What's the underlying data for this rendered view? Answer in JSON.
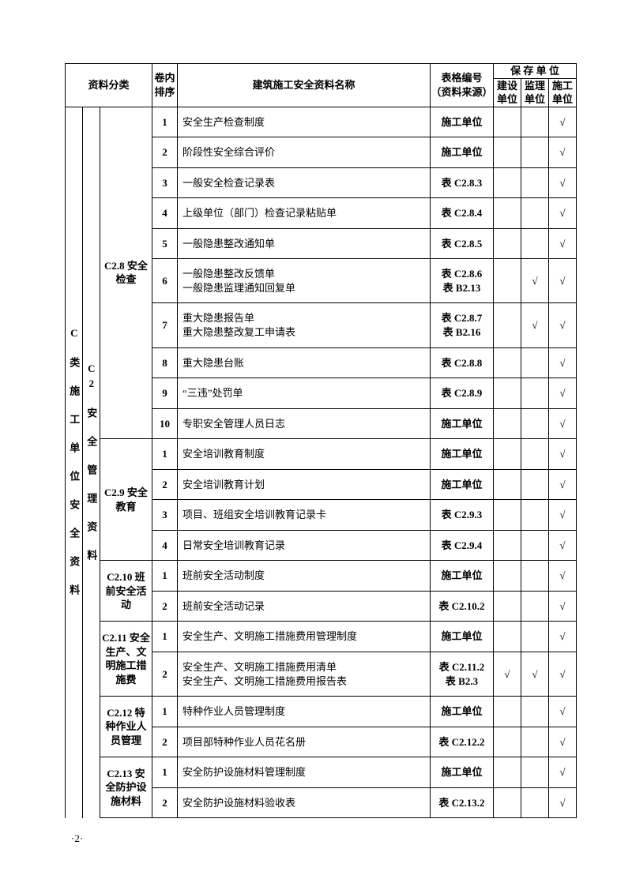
{
  "header": {
    "cat": "资料分类",
    "seq": "卷内\n排序",
    "name": "建筑施工安全资料名称",
    "src": "表格编号\n（资料来源）",
    "storeGroup": "保 存 单 位",
    "store1": "建设\n单位",
    "store2": "监理\n单位",
    "store3": "施工\n单位"
  },
  "cat1": "C 类 施 工 单 位 安 全 资 料",
  "cat2": "C2 安 全 管 理 资 料",
  "groups": [
    {
      "label": "C2.8 安全检查"
    },
    {
      "label": "C2.9 安全教育"
    },
    {
      "label": "C2.10 班前安全活动"
    },
    {
      "label": "C2.11 安全生产、文明施工措施费"
    },
    {
      "label": "C2.12 特种作业人员管理"
    },
    {
      "label": "C2.13 安全防护设施材料"
    }
  ],
  "rows": [
    {
      "g": 0,
      "seq": "1",
      "name": "安全生产检查制度",
      "src": "施工单位",
      "m": [
        "",
        "",
        "√"
      ]
    },
    {
      "g": 0,
      "seq": "2",
      "name": "阶段性安全综合评价",
      "src": "施工单位",
      "m": [
        "",
        "",
        "√"
      ]
    },
    {
      "g": 0,
      "seq": "3",
      "name": "一般安全检查记录表",
      "src": "表 C2.8.3",
      "m": [
        "",
        "",
        "√"
      ]
    },
    {
      "g": 0,
      "seq": "4",
      "name": "上级单位（部门）检查记录粘贴单",
      "src": "表 C2.8.4",
      "m": [
        "",
        "",
        "√"
      ]
    },
    {
      "g": 0,
      "seq": "5",
      "name": "一般隐患整改通知单",
      "src": "表 C2.8.5",
      "m": [
        "",
        "",
        "√"
      ]
    },
    {
      "g": 0,
      "seq": "6",
      "name": "一般隐患整改反馈单\n一般隐患监理通知回复单",
      "src": "表 C2.8.6\n表 B2.13",
      "m": [
        "",
        "√",
        "√"
      ]
    },
    {
      "g": 0,
      "seq": "7",
      "name": "重大隐患报告单\n重大隐患整改复工申请表",
      "src": "表 C2.8.7\n表 B2.16",
      "m": [
        "",
        "√",
        "√"
      ]
    },
    {
      "g": 0,
      "seq": "8",
      "name": "重大隐患台账",
      "src": "表 C2.8.8",
      "m": [
        "",
        "",
        "√"
      ]
    },
    {
      "g": 0,
      "seq": "9",
      "name": "“三违”处罚单",
      "src": "表 C2.8.9",
      "m": [
        "",
        "",
        "√"
      ]
    },
    {
      "g": 0,
      "seq": "10",
      "name": "专职安全管理人员日志",
      "src": "施工单位",
      "m": [
        "",
        "",
        "√"
      ]
    },
    {
      "g": 1,
      "seq": "1",
      "name": "安全培训教育制度",
      "src": "施工单位",
      "m": [
        "",
        "",
        "√"
      ]
    },
    {
      "g": 1,
      "seq": "2",
      "name": "安全培训教育计划",
      "src": "施工单位",
      "m": [
        "",
        "",
        "√"
      ]
    },
    {
      "g": 1,
      "seq": "3",
      "name": "项目、班组安全培训教育记录卡",
      "src": "表 C2.9.3",
      "m": [
        "",
        "",
        "√"
      ]
    },
    {
      "g": 1,
      "seq": "4",
      "name": "日常安全培训教育记录",
      "src": "表 C2.9.4",
      "m": [
        "",
        "",
        "√"
      ]
    },
    {
      "g": 2,
      "seq": "1",
      "name": "班前安全活动制度",
      "src": "施工单位",
      "m": [
        "",
        "",
        "√"
      ]
    },
    {
      "g": 2,
      "seq": "2",
      "name": "班前安全活动记录",
      "src": "表 C2.10.2",
      "m": [
        "",
        "",
        "√"
      ]
    },
    {
      "g": 3,
      "seq": "1",
      "name": "安全生产、文明施工措施费用管理制度",
      "src": "施工单位",
      "m": [
        "",
        "",
        "√"
      ]
    },
    {
      "g": 3,
      "seq": "2",
      "name": "安全生产、文明施工措施费用清单\n安全生产、文明施工措施费用报告表",
      "src": "表 C2.11.2\n表 B2.3",
      "m": [
        "√",
        "√",
        "√"
      ]
    },
    {
      "g": 4,
      "seq": "1",
      "name": "特种作业人员管理制度",
      "src": "施工单位",
      "m": [
        "",
        "",
        "√"
      ]
    },
    {
      "g": 4,
      "seq": "2",
      "name": "项目部特种作业人员花名册",
      "src": "表 C2.12.2",
      "m": [
        "",
        "",
        "√"
      ]
    },
    {
      "g": 5,
      "seq": "1",
      "name": "安全防护设施材料管理制度",
      "src": "施工单位",
      "m": [
        "",
        "",
        "√"
      ]
    },
    {
      "g": 5,
      "seq": "2",
      "name": "安全防护设施材料验收表",
      "src": "表 C2.13.2",
      "m": [
        "",
        "",
        "√"
      ]
    }
  ],
  "pageNumber": "·2·"
}
